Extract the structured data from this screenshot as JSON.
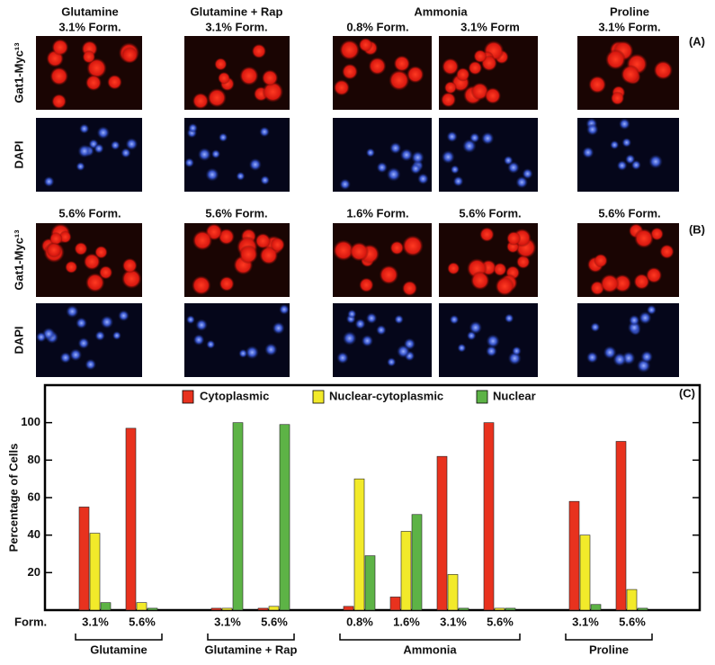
{
  "figure": {
    "titles": [
      "Glutamine",
      "Glutamine + Rap",
      "Ammonia",
      "Proline"
    ],
    "row_a": {
      "label": "(A)",
      "conditions": [
        "3.1% Form.",
        "3.1% Form.",
        "0.8% Form.",
        "3.1% Form",
        "3.1% Form."
      ]
    },
    "row_b": {
      "label": "(B)",
      "conditions": [
        "5.6% Form.",
        "5.6% Form.",
        "1.6% Form.",
        "5.6% Form.",
        "5.6% Form."
      ]
    },
    "stain_labels": [
      "Gat1-Myc¹³",
      "DAPI"
    ]
  },
  "chart_data": {
    "type": "bar",
    "panel_label": "(C)",
    "y_label": "Percentage of Cells",
    "x_label": "Form.",
    "groups": [
      {
        "name": "Glutamine",
        "categories": [
          "3.1%",
          "5.6%"
        ]
      },
      {
        "name": "Glutamine + Rap",
        "categories": [
          "3.1%",
          "5.6%"
        ]
      },
      {
        "name": "Ammonia",
        "categories": [
          "0.8%",
          "1.6%",
          "3.1%",
          "5.6%"
        ]
      },
      {
        "name": "Proline",
        "categories": [
          "3.1%",
          "5.6%"
        ]
      }
    ],
    "series": [
      {
        "name": "Cytoplasmic",
        "color": "#e8321e",
        "values": [
          55,
          97,
          1,
          1,
          2,
          7,
          82,
          100,
          58,
          90
        ]
      },
      {
        "name": "Nuclear-cytoplasmic",
        "color": "#f2ea2a",
        "values": [
          41,
          4,
          1,
          2,
          70,
          42,
          19,
          1,
          40,
          11
        ]
      },
      {
        "name": "Nuclear",
        "color": "#5db346",
        "values": [
          4,
          1,
          100,
          99,
          29,
          51,
          1,
          1,
          3,
          1
        ]
      }
    ],
    "ylim": [
      0,
      120
    ],
    "yticks": [
      20,
      40,
      60,
      80,
      100
    ],
    "legend": "top"
  }
}
